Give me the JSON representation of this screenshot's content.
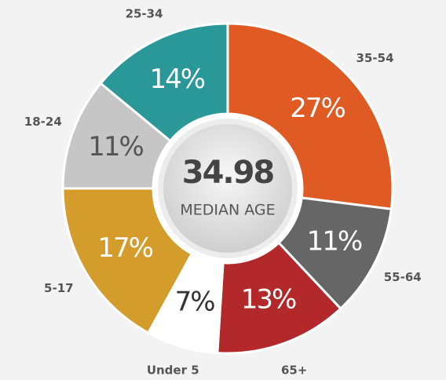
{
  "chart_data": {
    "type": "donut",
    "categories": [
      "35-54",
      "55-64",
      "65+",
      "Under 5",
      "5-17",
      "18-24",
      "25-34"
    ],
    "values": [
      27,
      11,
      13,
      7,
      17,
      11,
      14
    ],
    "value_labels": [
      "27%",
      "11%",
      "13%",
      "7%",
      "17%",
      "11%",
      "14%"
    ],
    "colors": [
      "#e05a24",
      "#666666",
      "#b3282a",
      "#ffffff",
      "#d39c2b",
      "#c6c6c6",
      "#2a9898"
    ],
    "center_value": 34.98,
    "center_label": "MEDIAN AGE"
  }
}
